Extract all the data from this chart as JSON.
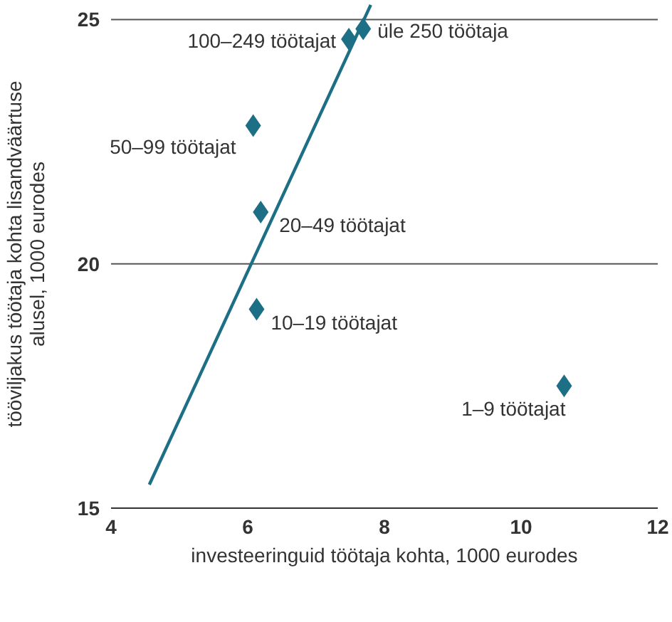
{
  "chart_data": {
    "type": "scatter",
    "xlabel": "investeeringuid töötaja kohta, 1000 eurodes",
    "ylabel": "tööviljakus töötaja kohta lisandväärtuse alusel, 1000 eurodes",
    "xlim": [
      4,
      12
    ],
    "xticks": [
      4,
      6,
      8,
      10,
      12
    ],
    "ylim": [
      15,
      25.4
    ],
    "yticks": [
      15,
      20,
      25
    ],
    "grid": "y",
    "series": [
      {
        "marker": "diamond",
        "color": "#1d6f86",
        "x": [
          10.63,
          6.13,
          6.19,
          6.08,
          7.48,
          7.69
        ],
        "values": [
          17.5,
          19.07,
          21.06,
          22.83,
          24.6,
          24.81
        ]
      },
      {
        "type": "line",
        "marker": "none",
        "color": "#1d6f86",
        "x": [
          4.56,
          7.8
        ],
        "values": [
          15.48,
          25.3
        ]
      }
    ],
    "annotations": [
      {
        "text": "1–9 töötajat",
        "x": 10.63,
        "y": 17.5
      },
      {
        "text": "10–19 töötajat",
        "x": 6.13,
        "y": 19.07
      },
      {
        "text": "20–49 töötajat",
        "x": 6.19,
        "y": 21.06
      },
      {
        "text": "50–99 töötajat",
        "x": 6.08,
        "y": 22.83
      },
      {
        "text": "100–249 töötajat",
        "x": 7.48,
        "y": 24.6
      },
      {
        "text": "üle 250 töötaja",
        "x": 7.69,
        "y": 24.81
      }
    ]
  }
}
